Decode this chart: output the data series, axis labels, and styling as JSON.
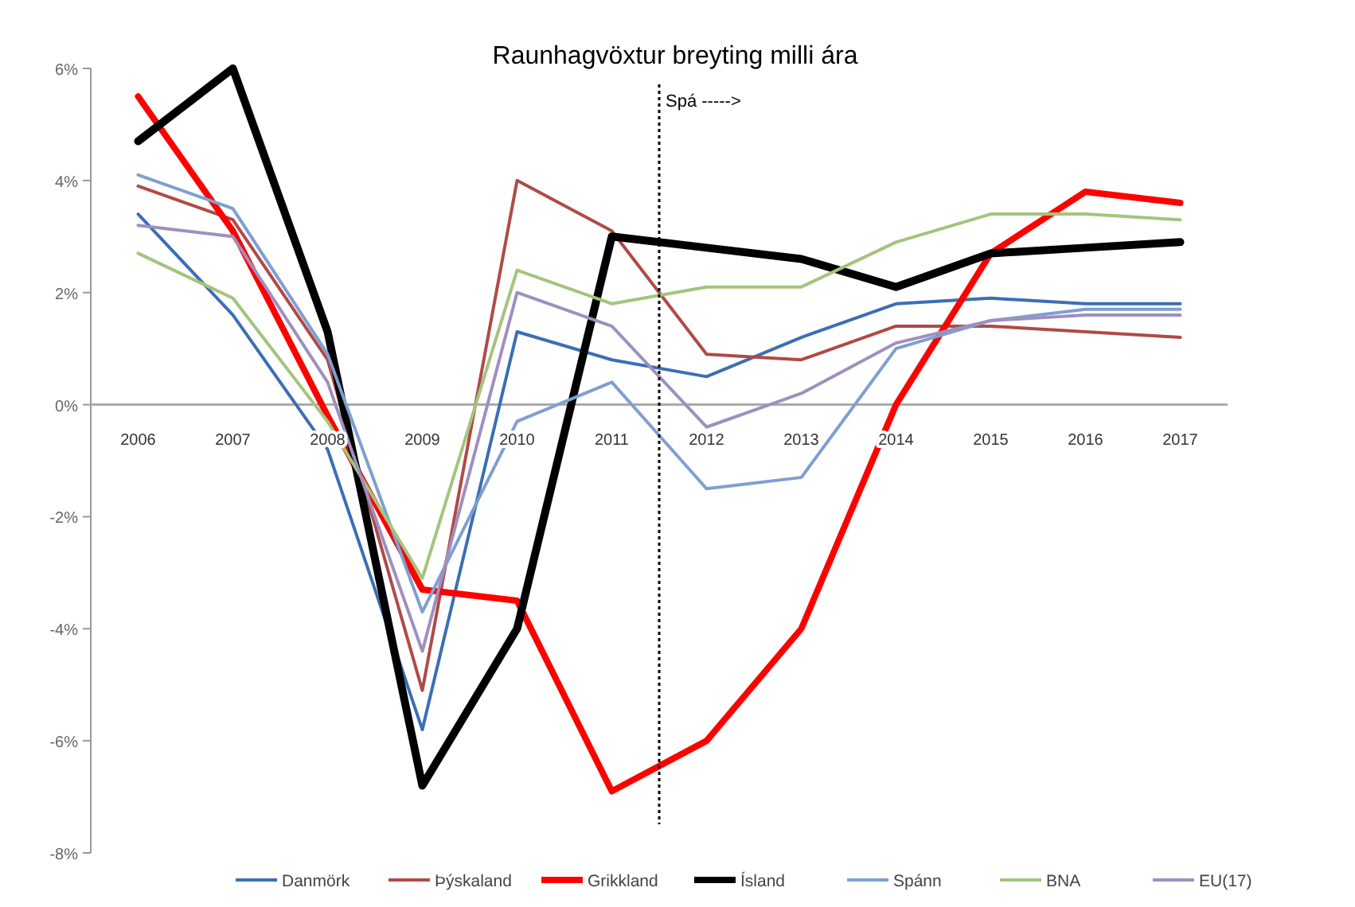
{
  "chart_data": {
    "type": "line",
    "title": "Raunhagvöxtur breyting milli ára",
    "x": [
      2006,
      2007,
      2008,
      2009,
      2010,
      2011,
      2012,
      2013,
      2014,
      2015,
      2016,
      2017
    ],
    "xlim": [
      2005.5,
      2017.5
    ],
    "xticks": [
      2006,
      2007,
      2008,
      2009,
      2010,
      2011,
      2012,
      2013,
      2014,
      2015,
      2016,
      2017
    ],
    "ylim": [
      -8,
      6
    ],
    "yticks": [
      {
        "value": -8,
        "label": "-8%"
      },
      {
        "value": -6,
        "label": "-6%"
      },
      {
        "value": -4,
        "label": "-4%"
      },
      {
        "value": -2,
        "label": "-2%"
      },
      {
        "value": 0,
        "label": "0%"
      },
      {
        "value": 2,
        "label": "2%"
      },
      {
        "value": 4,
        "label": "4%"
      },
      {
        "value": 6,
        "label": "6%"
      }
    ],
    "grid": false,
    "legend": "bottom",
    "marker": "none",
    "line_style": "solid",
    "ref_lines": [
      {
        "axis": "x",
        "value": 2011.5,
        "label": "Spá ----->",
        "line_style": "dotted",
        "color": "#000000"
      }
    ],
    "series": [
      {
        "name": "Danmörk",
        "color": "#3c6eb4",
        "values": [
          3.4,
          1.6,
          -0.8,
          -5.8,
          1.3,
          0.8,
          0.5,
          1.2,
          1.8,
          1.9,
          1.8,
          1.8
        ]
      },
      {
        "name": "Þýskaland",
        "color": "#b04a47",
        "values": [
          3.9,
          3.3,
          0.8,
          -5.1,
          4.0,
          3.1,
          0.9,
          0.8,
          1.4,
          1.4,
          1.3,
          1.2
        ]
      },
      {
        "name": "Grikkland",
        "color": "#ff0000",
        "values": [
          5.5,
          3.1,
          -0.2,
          -3.3,
          -3.5,
          -6.9,
          -6.0,
          -4.0,
          0.0,
          2.7,
          3.8,
          3.6
        ]
      },
      {
        "name": "Ísland",
        "color": "#000000",
        "values": [
          4.7,
          6.0,
          1.3,
          -6.8,
          -4.0,
          3.0,
          2.8,
          2.6,
          2.1,
          2.7,
          2.8,
          2.9
        ]
      },
      {
        "name": "Spánn",
        "color": "#7f9fd0",
        "values": [
          4.1,
          3.5,
          0.9,
          -3.7,
          -0.3,
          0.4,
          -1.5,
          -1.3,
          1.0,
          1.5,
          1.7,
          1.7
        ]
      },
      {
        "name": "BNA",
        "color": "#a4c47c",
        "values": [
          2.7,
          1.9,
          -0.3,
          -3.1,
          2.4,
          1.8,
          2.1,
          2.1,
          2.9,
          3.4,
          3.4,
          3.3
        ]
      },
      {
        "name": "EU(17)",
        "color": "#9f8fbf",
        "values": [
          3.2,
          3.0,
          0.4,
          -4.4,
          2.0,
          1.4,
          -0.4,
          0.2,
          1.1,
          1.5,
          1.6,
          1.6
        ]
      }
    ]
  }
}
